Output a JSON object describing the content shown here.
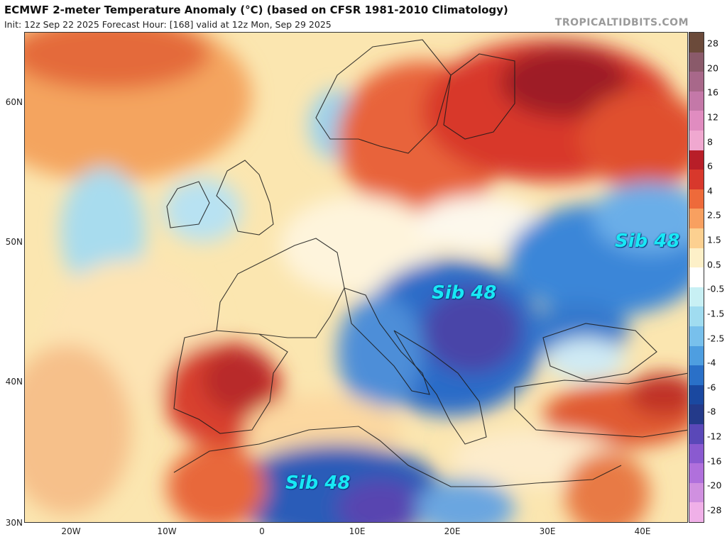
{
  "header": {
    "title": "ECMWF 2-meter Temperature Anomaly (°C) (based on CFSR 1981-2010 Climatology)",
    "subtitle": "Init: 12z Sep 22 2025   Forecast Hour: [168]   valid at 12z Mon, Sep 29 2025",
    "brand": "TROPICALTIDBITS.COM"
  },
  "axes": {
    "lat_labels": [
      "60N",
      "50N",
      "40N",
      "30N"
    ],
    "lon_labels": [
      "20W",
      "10W",
      "0",
      "10E",
      "20E",
      "30E",
      "40E"
    ]
  },
  "colorbar": {
    "labels": [
      "28",
      "20",
      "16",
      "12",
      "8",
      "6",
      "4",
      "2.5",
      "1.5",
      "0.5",
      "-0.5",
      "-1.5",
      "-2.5",
      "-4",
      "-6",
      "-8",
      "-12",
      "-16",
      "-20",
      "-28"
    ],
    "colors": [
      "#6b4a3a",
      "#8a5a6a",
      "#a8688a",
      "#c478a8",
      "#e08cc0",
      "#f0a8d0",
      "#b81e28",
      "#d8382c",
      "#ee6a3a",
      "#f8a060",
      "#fcd090",
      "#fdf0c8",
      "#ffffff",
      "#c8f0f4",
      "#a0dcf0",
      "#78c0ec",
      "#4e9ee0",
      "#2a70c8",
      "#1a48a0",
      "#243a8a",
      "#5a48b8",
      "#8a5ad0",
      "#b070dc",
      "#d090e0",
      "#f0b0e8"
    ]
  },
  "annotations": [
    "Sib 48",
    "Sib 48",
    "Sib 48"
  ],
  "palette": {
    "ocean_warm": "#fce8b8",
    "ocean_cool": "#9fd4ec",
    "hot": "#d8382c",
    "very_hot": "#a01c2a",
    "cold": "#2a70c8",
    "very_cold": "#5a48b8"
  }
}
